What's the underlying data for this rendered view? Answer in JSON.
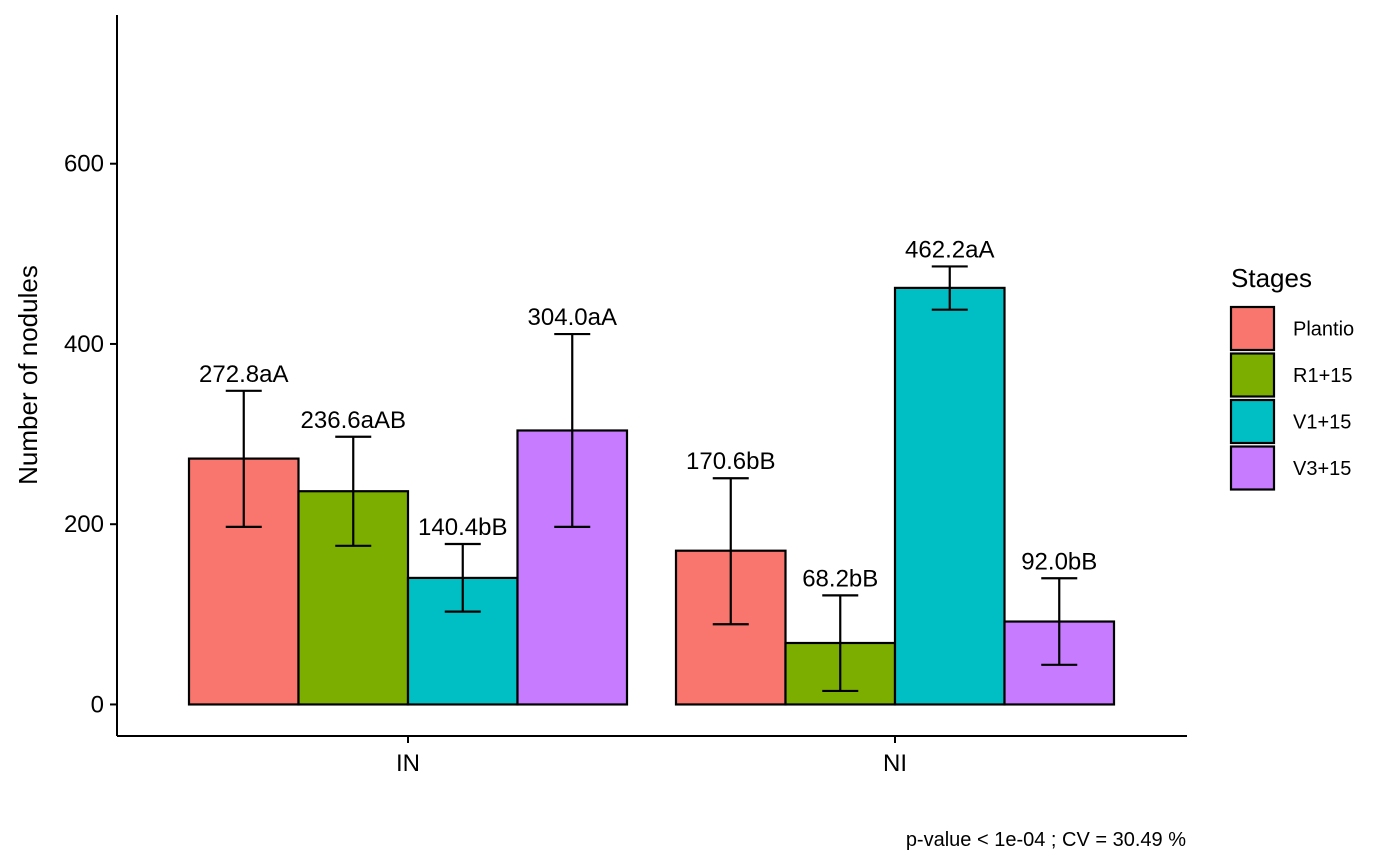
{
  "chart_data": {
    "type": "bar",
    "title": "",
    "xlabel": "",
    "ylabel": "Number of nodules",
    "ylim": [
      -35,
      765
    ],
    "yticks": [
      0,
      200,
      400,
      600
    ],
    "grid": false,
    "legend_position": "right",
    "categories": [
      "IN",
      "NI"
    ],
    "legend_title": "Stages",
    "series": [
      {
        "name": "Plantio",
        "color": "#F8766D",
        "values": [
          272.8,
          170.6
        ],
        "error": [
          [
            197,
            348
          ],
          [
            89,
            251
          ]
        ],
        "labels": [
          "272.8aA",
          "170.6bB"
        ]
      },
      {
        "name": "R1+15",
        "color": "#7CAE00",
        "values": [
          236.6,
          68.2
        ],
        "error": [
          [
            176,
            297
          ],
          [
            15,
            121
          ]
        ],
        "labels": [
          "236.6aAB",
          "68.2bB"
        ]
      },
      {
        "name": "V1+15",
        "color": "#00BFC4",
        "values": [
          140.4,
          462.2
        ],
        "error": [
          [
            103,
            178
          ],
          [
            438,
            486
          ]
        ],
        "labels": [
          "140.4bB",
          "462.2aA"
        ]
      },
      {
        "name": "V3+15",
        "color": "#C77CFF",
        "values": [
          304.0,
          92.0
        ],
        "error": [
          [
            197,
            411
          ],
          [
            44,
            140
          ]
        ],
        "labels": [
          "304.0aA",
          "92.0bB"
        ]
      }
    ],
    "caption": "p-value  < 1e-04 ; CV =  30.49 %"
  }
}
